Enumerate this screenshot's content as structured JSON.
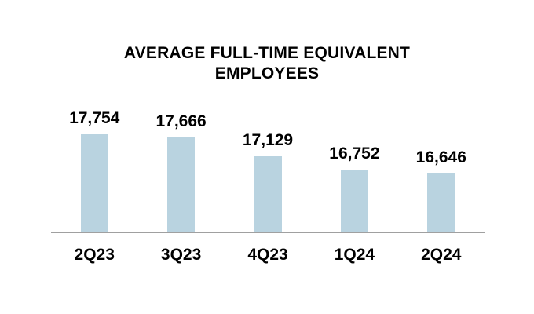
{
  "chart_data": {
    "type": "bar",
    "title": "AVERAGE FULL-TIME EQUIVALENT EMPLOYEES",
    "categories": [
      "2Q23",
      "3Q23",
      "4Q23",
      "1Q24",
      "2Q24"
    ],
    "values": [
      17754,
      17666,
      17129,
      16752,
      16646
    ],
    "value_labels": [
      "17,754",
      "17,666",
      "17,129",
      "16,752",
      "16,646"
    ],
    "xlabel": "",
    "ylabel": "",
    "ylim": [
      15000,
      18000
    ],
    "grid": false,
    "legend": false,
    "data_labels_position": "above-bars",
    "bar_color": "#b9d3e0",
    "axis_line_color": "#a0a0a0",
    "text_color": "#000000",
    "background_color": "#ffffff"
  }
}
